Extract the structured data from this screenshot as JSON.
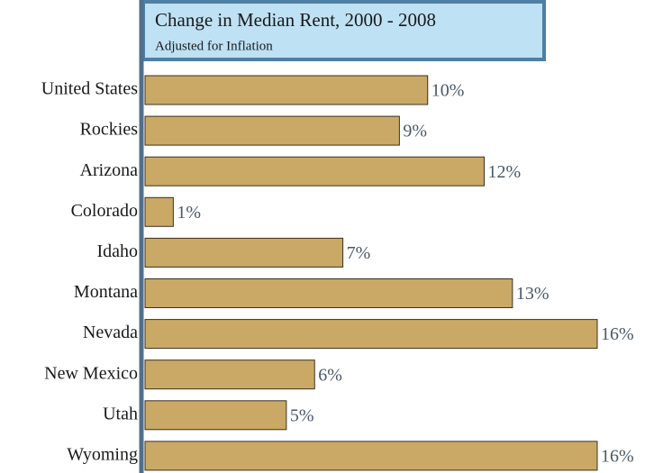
{
  "chart_data": {
    "type": "bar",
    "orientation": "horizontal",
    "title": "Change in Median Rent, 2000 - 2008",
    "subtitle": "Adjusted for Inflation",
    "categories": [
      "United States",
      "Rockies",
      "Arizona",
      "Colorado",
      "Idaho",
      "Montana",
      "Nevada",
      "New Mexico",
      "Utah",
      "Wyoming"
    ],
    "values": [
      10,
      9,
      12,
      1,
      7,
      13,
      16,
      6,
      5,
      16
    ],
    "value_labels": [
      "10%",
      "9%",
      "12%",
      "1%",
      "7%",
      "13%",
      "16%",
      "6%",
      "5%",
      "16%"
    ],
    "color": "#c9a965"
  }
}
